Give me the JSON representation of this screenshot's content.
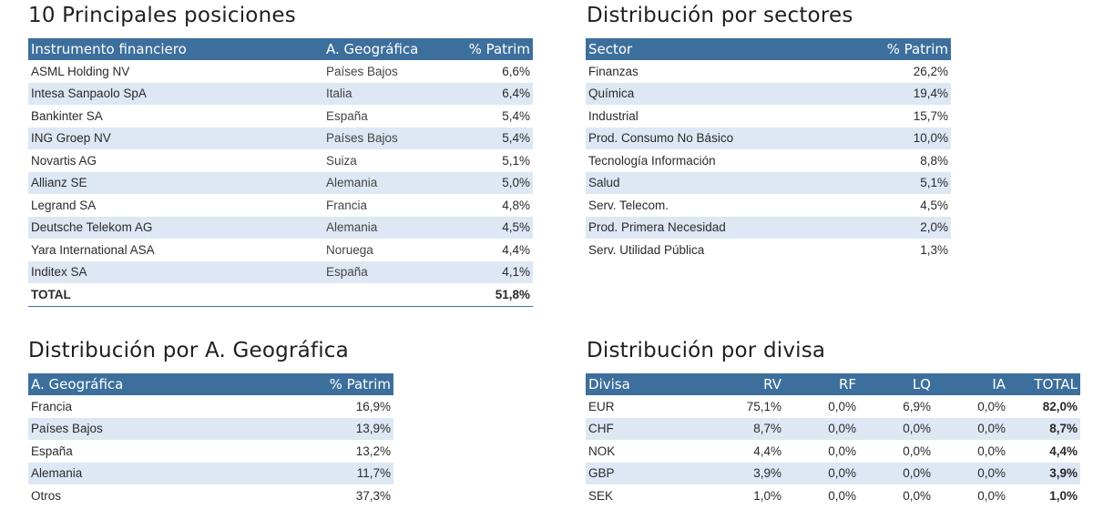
{
  "top10": {
    "title": "10 Principales posiciones",
    "headers": [
      "Instrumento financiero",
      "A. Geográfica",
      "% Patrim"
    ],
    "rows": [
      [
        "ASML Holding NV",
        "Países Bajos",
        "6,6%"
      ],
      [
        "Intesa Sanpaolo SpA",
        "Italia",
        "6,4%"
      ],
      [
        "Bankinter SA",
        "España",
        "5,4%"
      ],
      [
        "ING Groep NV",
        "Países Bajos",
        "5,4%"
      ],
      [
        "Novartis AG",
        "Suiza",
        "5,1%"
      ],
      [
        "Allianz SE",
        "Alemania",
        "5,0%"
      ],
      [
        "Legrand SA",
        "Francia",
        "4,8%"
      ],
      [
        "Deutsche Telekom AG",
        "Alemania",
        "4,5%"
      ],
      [
        "Yara International ASA",
        "Noruega",
        "4,4%"
      ],
      [
        "Inditex SA",
        "España",
        "4,1%"
      ]
    ],
    "total_label": "TOTAL",
    "total_value": "51,8%"
  },
  "sectors": {
    "title": "Distribución por sectores",
    "headers": [
      "Sector",
      "% Patrim"
    ],
    "rows": [
      [
        "Finanzas",
        "26,2%"
      ],
      [
        "Química",
        "19,4%"
      ],
      [
        "Industrial",
        "15,7%"
      ],
      [
        "Prod. Consumo No Básico",
        "10,0%"
      ],
      [
        "Tecnología Información",
        "8,8%"
      ],
      [
        "Salud",
        "5,1%"
      ],
      [
        "Serv. Telecom.",
        "4,5%"
      ],
      [
        "Prod. Primera Necesidad",
        "2,0%"
      ],
      [
        "Serv. Utilidad Pública",
        "1,3%"
      ]
    ]
  },
  "geo": {
    "title": "Distribución por A. Geográfica",
    "headers": [
      "A. Geográfica",
      "% Patrim"
    ],
    "rows": [
      [
        "Francia",
        "16,9%"
      ],
      [
        "Países Bajos",
        "13,9%"
      ],
      [
        "España",
        "13,2%"
      ],
      [
        "Alemania",
        "11,7%"
      ],
      [
        "Otros",
        "37,3%"
      ]
    ]
  },
  "currency": {
    "title": "Distribución por divisa",
    "headers": [
      "Divisa",
      "RV",
      "RF",
      "LQ",
      "IA",
      "TOTAL"
    ],
    "rows": [
      [
        "EUR",
        "75,1%",
        "0,0%",
        "6,9%",
        "0,0%",
        "82,0%"
      ],
      [
        "CHF",
        "8,7%",
        "0,0%",
        "0,0%",
        "0,0%",
        "8,7%"
      ],
      [
        "NOK",
        "4,4%",
        "0,0%",
        "0,0%",
        "0,0%",
        "4,4%"
      ],
      [
        "GBP",
        "3,9%",
        "0,0%",
        "0,0%",
        "0,0%",
        "3,9%"
      ],
      [
        "SEK",
        "1,0%",
        "0,0%",
        "0,0%",
        "0,0%",
        "1,0%"
      ]
    ]
  },
  "colors": {
    "header_bg": "#3d6f9d",
    "stripe_bg": "#dde8f4"
  }
}
